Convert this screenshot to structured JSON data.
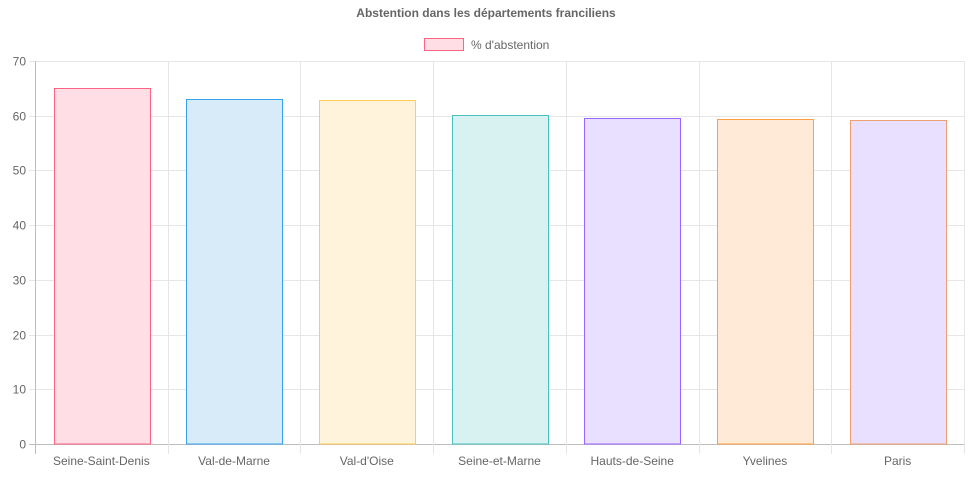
{
  "chart_data": {
    "type": "bar",
    "title": "Abstention dans les départements franciliens",
    "categories": [
      "Seine-Saint-Denis",
      "Val-de-Marne",
      "Val-d'Oise",
      "Seine-et-Marne",
      "Hauts-de-Seine",
      "Yvelines",
      "Paris"
    ],
    "series": [
      {
        "name": "% d'abstention",
        "values": [
          65.0,
          63.1,
          62.9,
          60.1,
          59.6,
          59.4,
          59.2
        ]
      }
    ],
    "bar_colors": [
      {
        "fill": "#ffdfe5",
        "stroke": "#ff6384"
      },
      {
        "fill": "#d7ebf8",
        "stroke": "#36a2eb"
      },
      {
        "fill": "#fff3db",
        "stroke": "#ffcd56"
      },
      {
        "fill": "#d8f1f1",
        "stroke": "#4bc0c0"
      },
      {
        "fill": "#e9dfff",
        "stroke": "#9966ff"
      },
      {
        "fill": "#feead7",
        "stroke": "#ff9f40"
      },
      {
        "fill": "#e9dfff",
        "stroke": "#f0a070"
      }
    ],
    "legend_swatch": {
      "fill": "#ffdfe5",
      "stroke": "#ff6384"
    },
    "ylim": [
      0,
      70
    ],
    "yticks": [
      0,
      10,
      20,
      30,
      40,
      50,
      60,
      70
    ],
    "grid": true,
    "legend_position": "top"
  }
}
